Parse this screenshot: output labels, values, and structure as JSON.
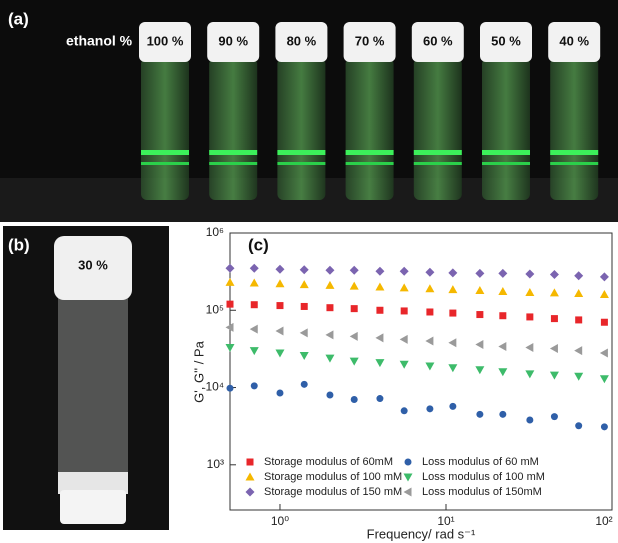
{
  "panel_a": {
    "label": "(a)",
    "heading": "ethanol %",
    "vials": [
      "100 %",
      "90 %",
      "80 %",
      "70 %",
      "60 %",
      "50 %",
      "40 %"
    ]
  },
  "panel_b": {
    "label": "(b)",
    "vial": "30 %"
  },
  "panel_c": {
    "label": "(c)"
  },
  "chart_data": {
    "type": "scatter",
    "log_x": true,
    "log_y": true,
    "x_label": "Frequency/ rad s⁻¹",
    "y_label": "G', G'' / Pa",
    "xlim": [
      0.5,
      100
    ],
    "ylim": [
      260,
      1000000
    ],
    "xticks": [
      {
        "value": 1,
        "label": "10⁰"
      },
      {
        "value": 10,
        "label": "10¹"
      },
      {
        "value": 100,
        "label": "10²"
      }
    ],
    "yticks": [
      {
        "value": 1000,
        "label": "10³"
      },
      {
        "value": 10000,
        "label": "10⁴"
      },
      {
        "value": 100000,
        "label": "10⁵"
      },
      {
        "value": 1000000,
        "label": "10⁶"
      }
    ],
    "legend": "lower-left",
    "x": [
      0.5,
      0.7,
      1,
      1.4,
      2,
      2.8,
      4,
      5.6,
      8,
      11,
      16,
      22,
      32,
      45,
      63,
      90
    ],
    "series": [
      {
        "name": "Storage modulus of 60mM",
        "color": "#e8262a",
        "marker": "square",
        "values": [
          120000,
          118000,
          115000,
          112000,
          108000,
          105000,
          100000,
          98000,
          95000,
          92000,
          88000,
          85000,
          82000,
          78000,
          75000,
          70000
        ]
      },
      {
        "name": "Loss modulus of 60 mM",
        "color": "#2f5fa8",
        "marker": "circle",
        "values": [
          9800,
          10500,
          8500,
          11000,
          8000,
          7000,
          7200,
          5000,
          5300,
          5700,
          4500,
          4500,
          3800,
          4200,
          3200,
          3100
        ]
      },
      {
        "name": "Storage modulus of 100 mM",
        "color": "#f5b800",
        "marker": "triangle-up",
        "values": [
          230000,
          225000,
          220000,
          215000,
          210000,
          205000,
          200000,
          195000,
          190000,
          185000,
          180000,
          175000,
          170000,
          168000,
          165000,
          160000
        ]
      },
      {
        "name": "Loss modulus  of 100 mM",
        "color": "#3dbb6a",
        "marker": "triangle-down",
        "values": [
          33000,
          30000,
          28000,
          26000,
          24000,
          22000,
          21000,
          20000,
          19000,
          18000,
          17000,
          16000,
          15000,
          14500,
          14000,
          13000
        ]
      },
      {
        "name": "Storage modulus of 150 mM",
        "color": "#7b64b0",
        "marker": "diamond",
        "values": [
          350000,
          350000,
          340000,
          335000,
          330000,
          330000,
          320000,
          320000,
          310000,
          305000,
          300000,
          300000,
          295000,
          290000,
          280000,
          270000
        ]
      },
      {
        "name": "Loss modulus of 150mM",
        "color": "#9a9a9a",
        "marker": "triangle-left",
        "values": [
          60000,
          57000,
          54000,
          51000,
          48000,
          46000,
          44000,
          42000,
          40000,
          38000,
          36000,
          34000,
          33000,
          32000,
          30000,
          28000
        ]
      }
    ]
  }
}
